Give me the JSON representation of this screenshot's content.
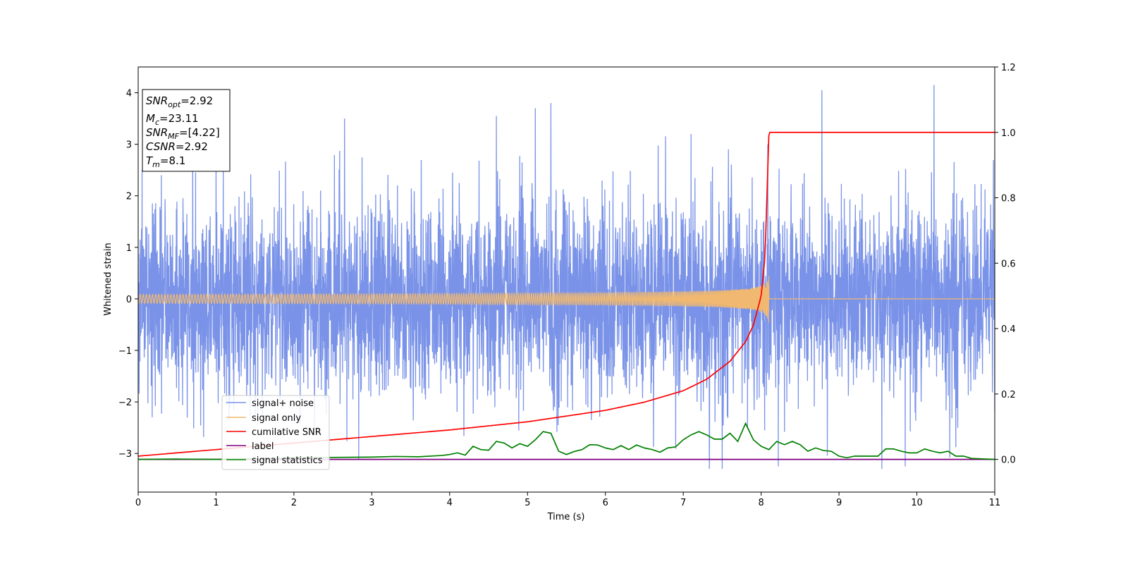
{
  "chart_data": {
    "type": "line",
    "xlabel": "Time (s)",
    "ylabel": "Whitened strain",
    "xlim": [
      0,
      11
    ],
    "ylim": [
      -3.75,
      4.5
    ],
    "y2lim": [
      -0.1,
      1.2
    ],
    "x_ticks": [
      0,
      1,
      2,
      3,
      4,
      5,
      6,
      7,
      8,
      9,
      10,
      11
    ],
    "y_ticks": [
      -3,
      -2,
      -1,
      0,
      1,
      2,
      3,
      4
    ],
    "y_tick_labels": [
      "−3",
      "−2",
      "−1",
      "0",
      "1",
      "2",
      "3",
      "4"
    ],
    "y2_ticks": [
      0.0,
      0.2,
      0.4,
      0.6,
      0.8,
      1.0,
      1.2
    ],
    "y2_tick_labels": [
      "0.0",
      "0.2",
      "0.4",
      "0.6",
      "0.8",
      "1.0",
      "1.2"
    ],
    "grid": false,
    "legend_position": "bottom-left",
    "annotation": {
      "snr_opt": {
        "name": "SNR",
        "sub": "opt",
        "value": "=2.92"
      },
      "mc": {
        "name": "M",
        "sub": "c",
        "value": "=23.11"
      },
      "snr_mf": {
        "name": "SNR",
        "sub": "MF",
        "value": "=[4.22]"
      },
      "csnr": {
        "name": "CSNR",
        "value": "=2.92"
      },
      "tm": {
        "name": "T",
        "sub": "m",
        "value": "=8.1"
      }
    },
    "series": [
      {
        "name": "signal+ noise",
        "color": "#7a93e8",
        "axis": "left",
        "description_values": {
          "mean": 0.0,
          "std": 1.0,
          "min": -3.3,
          "max": 4.15
        },
        "peaks": [
          [
            0.05,
            2.5
          ],
          [
            1.0,
            3.0
          ],
          [
            2.65,
            3.5
          ],
          [
            4.6,
            3.55
          ],
          [
            5.1,
            3.7
          ],
          [
            5.3,
            3.8
          ],
          [
            7.1,
            3.2
          ],
          [
            8.78,
            4.05
          ],
          [
            10.22,
            4.15
          ],
          [
            9.55,
            -3.3
          ],
          [
            9.85,
            -3.25
          ],
          [
            8.22,
            -3.25
          ]
        ]
      },
      {
        "name": "signal only",
        "color": "#f0b870",
        "axis": "left",
        "chirp_merger_time": 8.1,
        "chirp_peak_amplitude": 0.65
      },
      {
        "name": "cumilative SNR",
        "color": "#ff0000",
        "axis": "right",
        "x": [
          0,
          1,
          2,
          3,
          4,
          5,
          6,
          6.5,
          7,
          7.3,
          7.6,
          7.8,
          7.9,
          8.0,
          8.05,
          8.1,
          11
        ],
        "y": [
          0.01,
          0.03,
          0.05,
          0.07,
          0.09,
          0.115,
          0.15,
          0.175,
          0.21,
          0.245,
          0.3,
          0.36,
          0.41,
          0.5,
          0.62,
          1.0,
          1.0
        ]
      },
      {
        "name": "label",
        "color": "#800080",
        "axis": "right",
        "x": [
          0,
          11
        ],
        "y": [
          0.0,
          0.0
        ]
      },
      {
        "name": "signal statistics",
        "color": "#008000",
        "axis": "right",
        "x": [
          0,
          0.5,
          1,
          1.5,
          2,
          2.5,
          3,
          3.3,
          3.6,
          3.9,
          4.0,
          4.1,
          4.2,
          4.3,
          4.4,
          4.5,
          4.6,
          4.7,
          4.8,
          4.9,
          5.0,
          5.1,
          5.2,
          5.3,
          5.4,
          5.5,
          5.6,
          5.7,
          5.8,
          5.9,
          6.0,
          6.1,
          6.2,
          6.3,
          6.4,
          6.5,
          6.6,
          6.7,
          6.8,
          6.9,
          7.0,
          7.1,
          7.2,
          7.3,
          7.4,
          7.5,
          7.6,
          7.7,
          7.8,
          7.9,
          8.0,
          8.1,
          8.2,
          8.3,
          8.4,
          8.5,
          8.6,
          8.7,
          8.8,
          8.9,
          9.0,
          9.1,
          9.2,
          9.3,
          9.4,
          9.5,
          9.6,
          9.7,
          9.8,
          9.9,
          10.0,
          10.1,
          10.2,
          10.3,
          10.4,
          10.5,
          10.6,
          10.7,
          10.8,
          11.0
        ],
        "y": [
          0.0,
          0.001,
          0.0,
          0.002,
          0.004,
          0.006,
          0.007,
          0.009,
          0.008,
          0.012,
          0.015,
          0.02,
          0.013,
          0.04,
          0.03,
          0.028,
          0.055,
          0.05,
          0.035,
          0.048,
          0.04,
          0.06,
          0.085,
          0.08,
          0.025,
          0.015,
          0.024,
          0.03,
          0.045,
          0.044,
          0.035,
          0.03,
          0.042,
          0.03,
          0.044,
          0.035,
          0.03,
          0.022,
          0.035,
          0.038,
          0.06,
          0.075,
          0.085,
          0.075,
          0.062,
          0.062,
          0.08,
          0.055,
          0.11,
          0.06,
          0.04,
          0.03,
          0.055,
          0.045,
          0.055,
          0.045,
          0.025,
          0.035,
          0.027,
          0.025,
          0.01,
          0.005,
          0.01,
          0.01,
          0.01,
          0.01,
          0.032,
          0.032,
          0.025,
          0.02,
          0.02,
          0.032,
          0.025,
          0.02,
          0.025,
          0.01,
          0.01,
          0.003,
          0.002,
          0.0
        ]
      }
    ]
  }
}
